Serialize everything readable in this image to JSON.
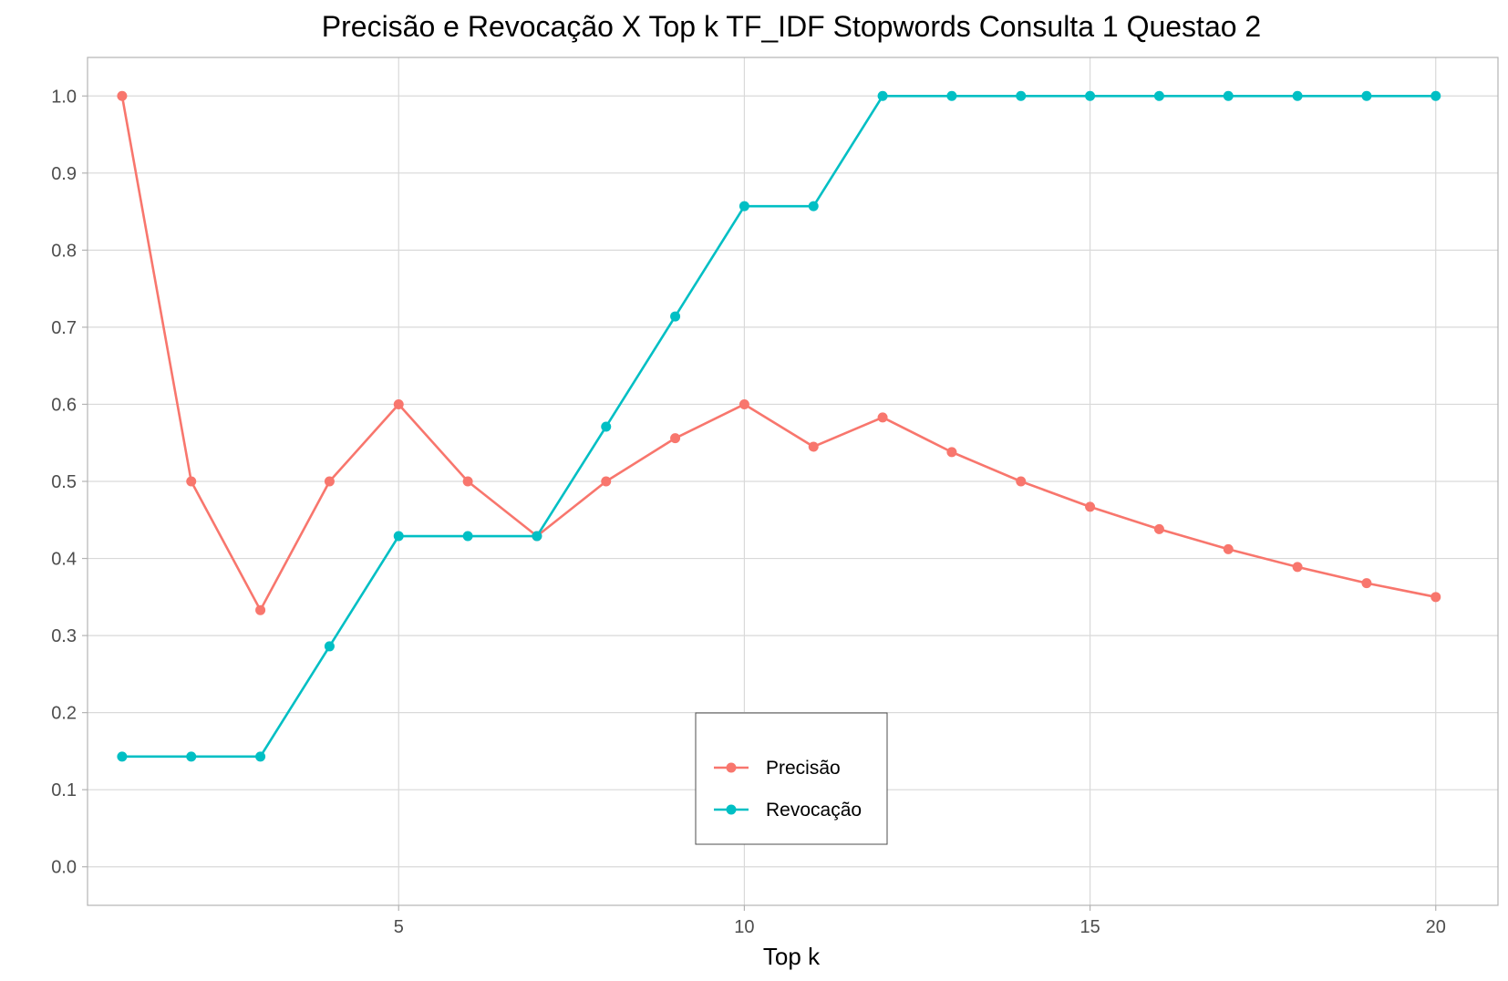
{
  "chart_data": {
    "type": "line",
    "title": "Precisão e Revocação X Top k TF_IDF Stopwords Consulta 1 Questao 2",
    "xlabel": "Top k",
    "ylabel": "",
    "x": [
      1,
      2,
      3,
      4,
      5,
      6,
      7,
      8,
      9,
      10,
      11,
      12,
      13,
      14,
      15,
      16,
      17,
      18,
      19,
      20
    ],
    "xlim": [
      0.5,
      20.9
    ],
    "ylim": [
      -0.05,
      1.05
    ],
    "x_ticks": [
      5,
      10,
      15,
      20
    ],
    "x_tick_labels": [
      "5",
      "10",
      "15",
      "20"
    ],
    "y_ticks": [
      0.0,
      0.1,
      0.2,
      0.3,
      0.4,
      0.5,
      0.6,
      0.7,
      0.8,
      0.9,
      1.0
    ],
    "y_tick_labels": [
      "0.0",
      "0.1",
      "0.2",
      "0.3",
      "0.4",
      "0.5",
      "0.6",
      "0.7",
      "0.8",
      "0.9",
      "1.0"
    ],
    "grid": true,
    "legend": "bottom-center",
    "series": [
      {
        "name": "Precisão",
        "color": "#F8766D",
        "values": [
          1.0,
          0.5,
          0.333,
          0.5,
          0.6,
          0.5,
          0.429,
          0.5,
          0.556,
          0.6,
          0.545,
          0.583,
          0.538,
          0.5,
          0.467,
          0.438,
          0.412,
          0.389,
          0.368,
          0.35
        ]
      },
      {
        "name": "Revocação",
        "color": "#00BFC4",
        "values": [
          0.143,
          0.143,
          0.143,
          0.286,
          0.429,
          0.429,
          0.429,
          0.571,
          0.714,
          0.857,
          0.857,
          1.0,
          1.0,
          1.0,
          1.0,
          1.0,
          1.0,
          1.0,
          1.0,
          1.0
        ]
      }
    ]
  }
}
